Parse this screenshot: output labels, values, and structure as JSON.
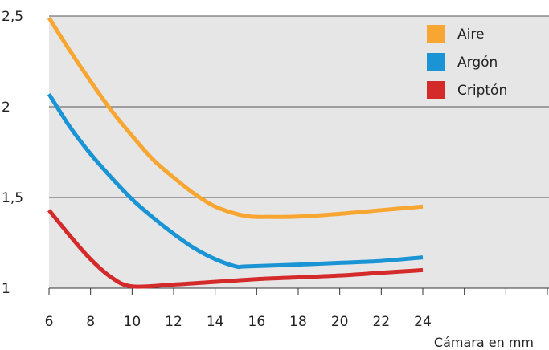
{
  "chart_data": {
    "type": "line",
    "title": "",
    "xlabel": "Cámara en mm",
    "ylabel": "",
    "xlim": [
      6,
      30
    ],
    "ylim": [
      1,
      2.5
    ],
    "x_ticks": [
      6,
      8,
      10,
      12,
      14,
      16,
      18,
      20,
      22,
      24
    ],
    "x_tick_labels": [
      "6",
      "8",
      "10",
      "12",
      "14",
      "16",
      "18",
      "20",
      "22",
      "24"
    ],
    "y_ticks": [
      1,
      1.5,
      2,
      2.5
    ],
    "y_tick_labels": [
      "1",
      "1,5",
      "2",
      "2,5"
    ],
    "grid": "horizontal",
    "legend_position": "top-right",
    "background": "#e6e6e6",
    "series": [
      {
        "name": "Aire",
        "color": "#f7a631",
        "x": [
          6,
          7,
          8,
          9,
          10,
          11,
          12,
          13,
          14,
          15,
          15.7,
          16.5,
          18,
          20,
          22,
          24
        ],
        "y": [
          2.49,
          2.31,
          2.14,
          1.98,
          1.84,
          1.71,
          1.61,
          1.52,
          1.45,
          1.41,
          1.395,
          1.393,
          1.395,
          1.41,
          1.43,
          1.45
        ]
      },
      {
        "name": "Argón",
        "color": "#1a94d4",
        "x": [
          6,
          7,
          8,
          9,
          10,
          11,
          12,
          13,
          14,
          15,
          15.5,
          18,
          20,
          22,
          24
        ],
        "y": [
          2.07,
          1.89,
          1.74,
          1.61,
          1.49,
          1.39,
          1.3,
          1.22,
          1.16,
          1.12,
          1.12,
          1.13,
          1.14,
          1.15,
          1.17
        ]
      },
      {
        "name": "Criptón",
        "color": "#d42a2a",
        "x": [
          6,
          7,
          8,
          9,
          10,
          12,
          14,
          16,
          18,
          20,
          22,
          24
        ],
        "y": [
          1.43,
          1.29,
          1.16,
          1.06,
          1.01,
          1.02,
          1.035,
          1.05,
          1.06,
          1.07,
          1.085,
          1.1
        ]
      }
    ]
  }
}
